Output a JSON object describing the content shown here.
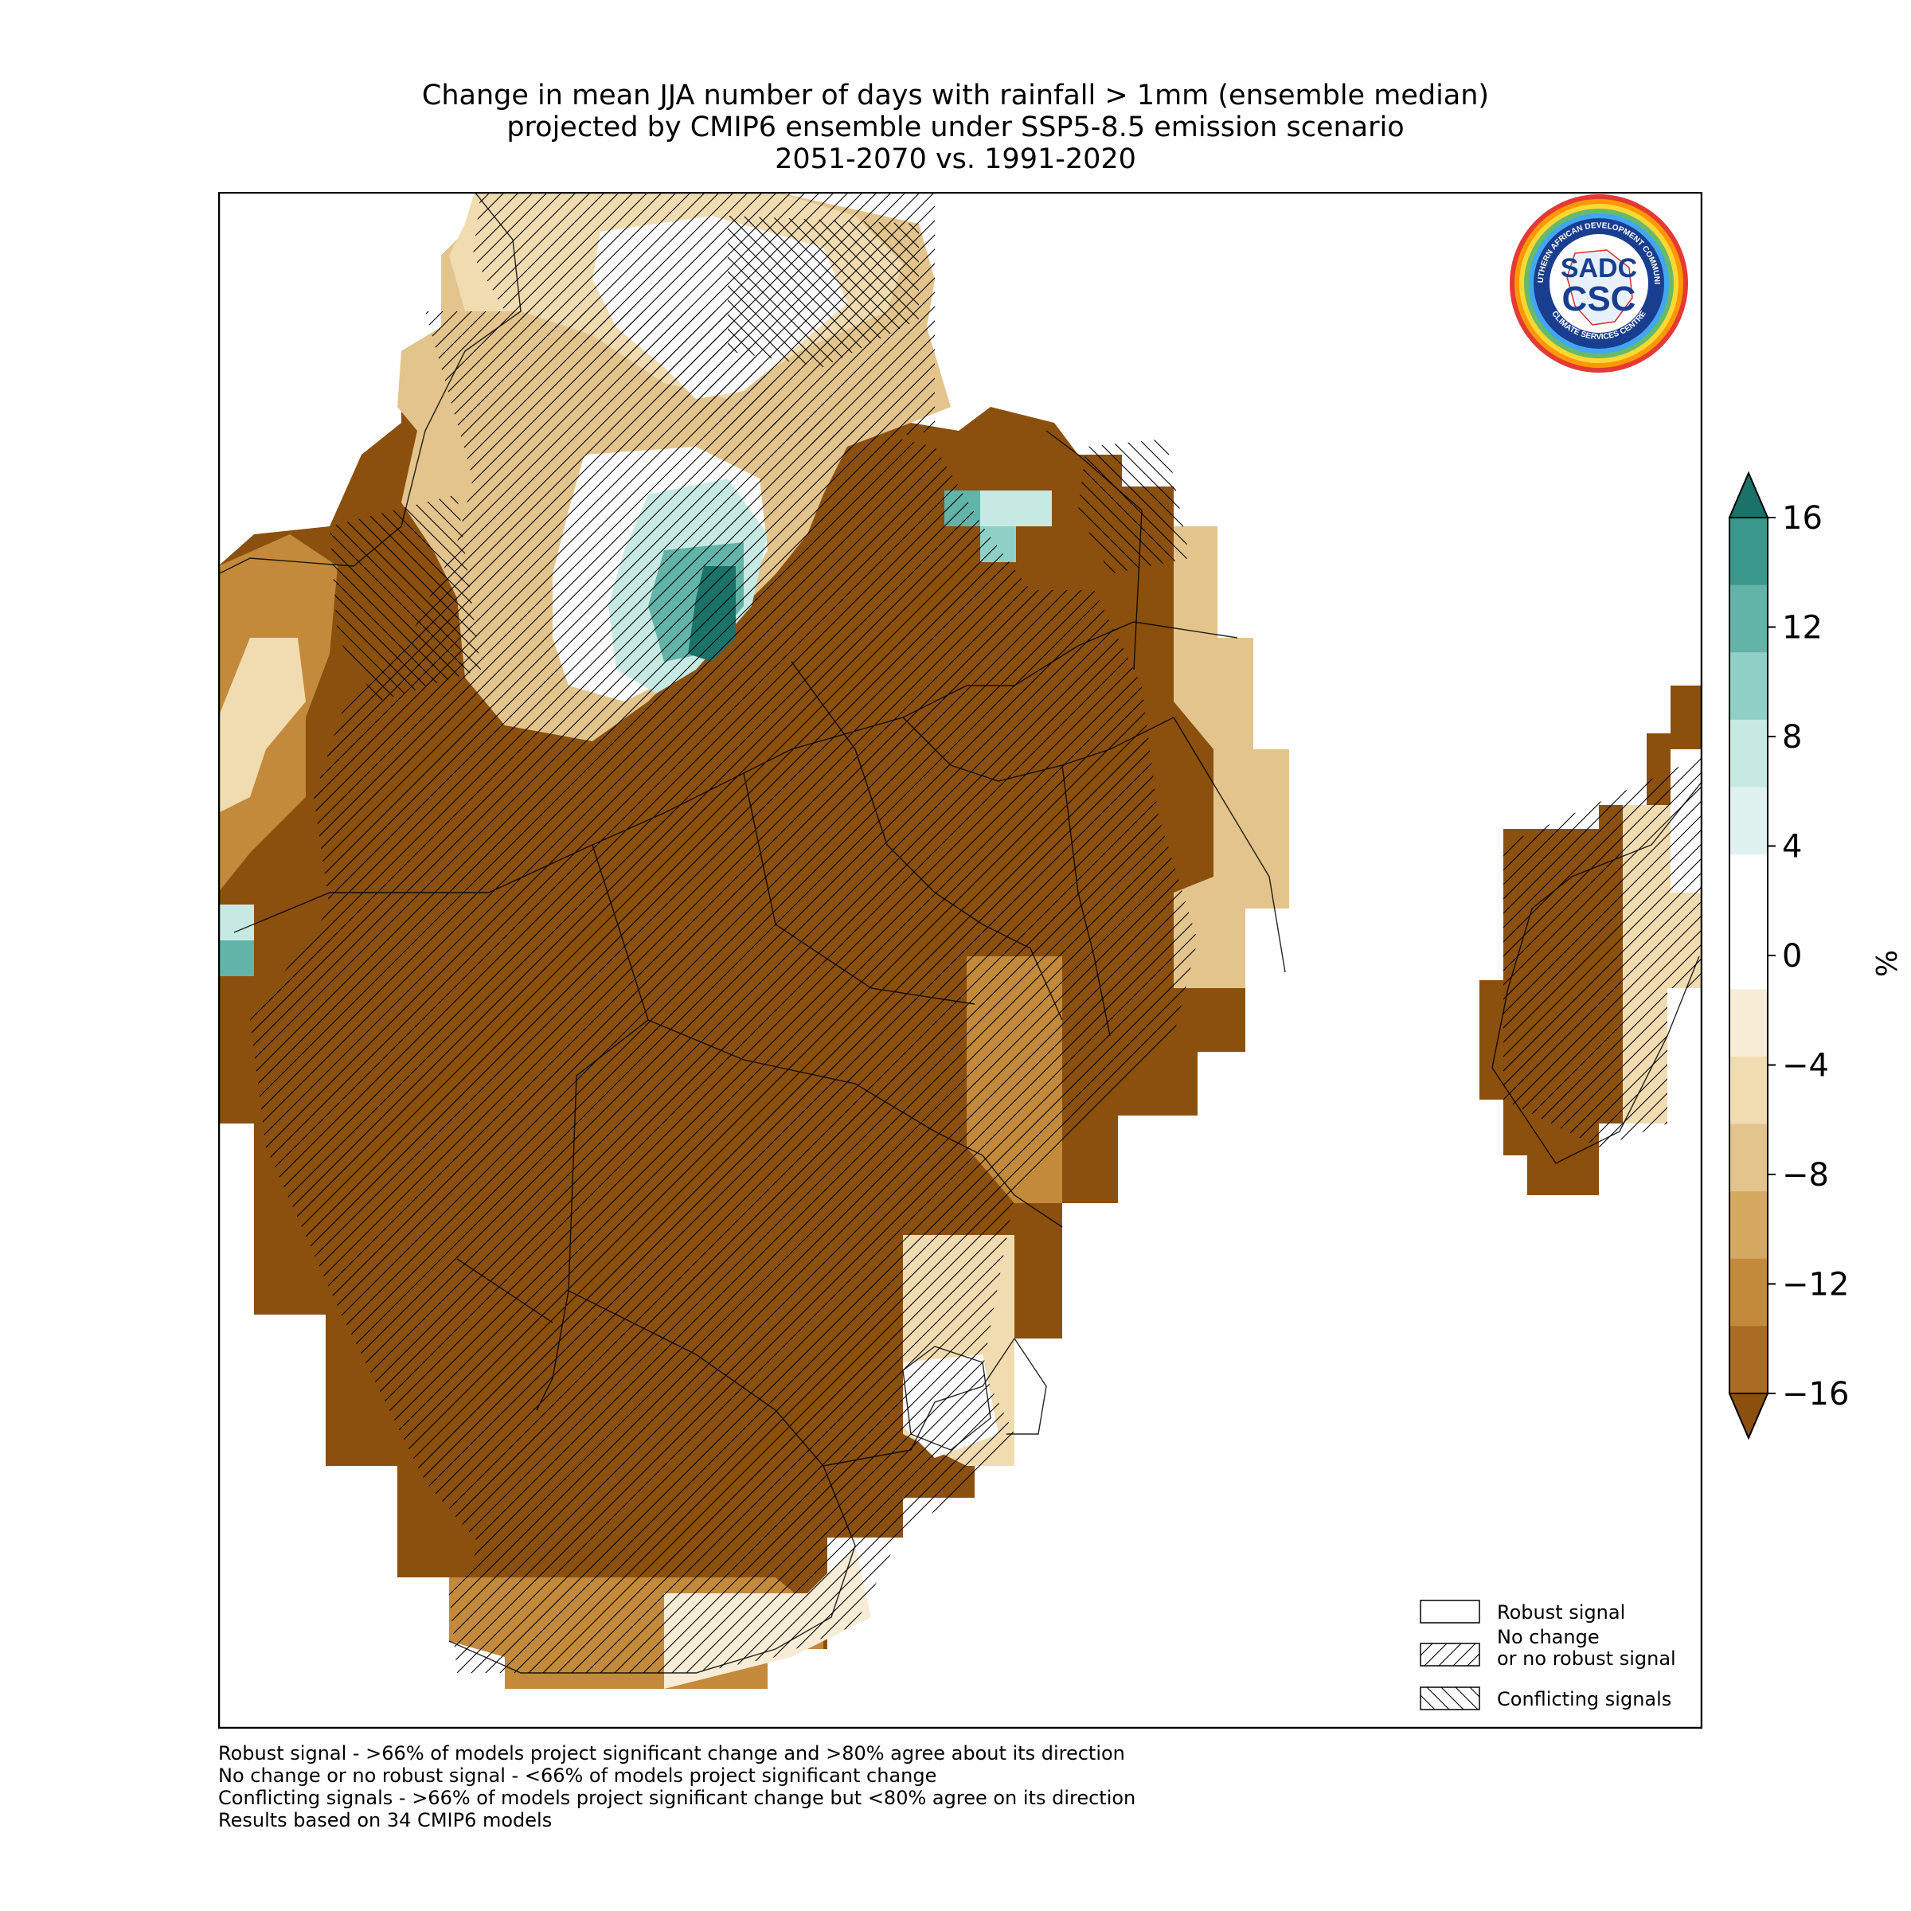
{
  "title": {
    "line1": "Change in mean JJA number of days with rainfall > 1mm (ensemble median)",
    "line2": "projected by CMIP6 ensemble under SSP5-8.5 emission scenario",
    "line3": "2051-2070 vs. 1991-2020"
  },
  "logo": {
    "text_main": "CSC",
    "text_sadc": "SADC",
    "ring_top": "SOUTHERN AFRICAN DEVELOPMENT COMMUNITY",
    "ring_bottom": "CLIMATE SERVICES CENTRE"
  },
  "colorbar": {
    "unit": "%",
    "ticks": [
      "16",
      "12",
      "8",
      "4",
      "0",
      "−4",
      "−8",
      "−12",
      "−16"
    ],
    "colors_top_to_bottom": [
      "#1a7268",
      "#3a978c",
      "#62b4a9",
      "#8fd0c6",
      "#c6e9e4",
      "#e0f2ef",
      "#ffffff",
      "#ffffff",
      "#f7ecd5",
      "#f0dcb0",
      "#e3c48c",
      "#d6a960",
      "#c38a3c",
      "#ab6b22",
      "#8b4f0e"
    ]
  },
  "legend": {
    "robust": "Robust signal",
    "nochange_1": "No change",
    "nochange_2": "or no robust signal",
    "conflicting": "Conflicting signals"
  },
  "footnotes": {
    "f1": "Robust signal - >66% of models project significant change and >80% agree about its direction",
    "f2": "No change or no robust signal - <66% of models project significant change",
    "f3": "Conflicting signals - >66% of models project significant change but <80% agree on its direction",
    "f4": "Results based on 34 CMIP6 models"
  },
  "map_colors": {
    "deep_brown": "#8b4f0e",
    "mid_brown": "#c38a3c",
    "tan": "#e3c48c",
    "light_tan": "#f0dcb0",
    "cream": "#f7ecd5",
    "white": "#ffffff",
    "teal_light": "#c6e9e4",
    "teal_mid": "#62b4a9",
    "teal_dark": "#1a7268"
  }
}
